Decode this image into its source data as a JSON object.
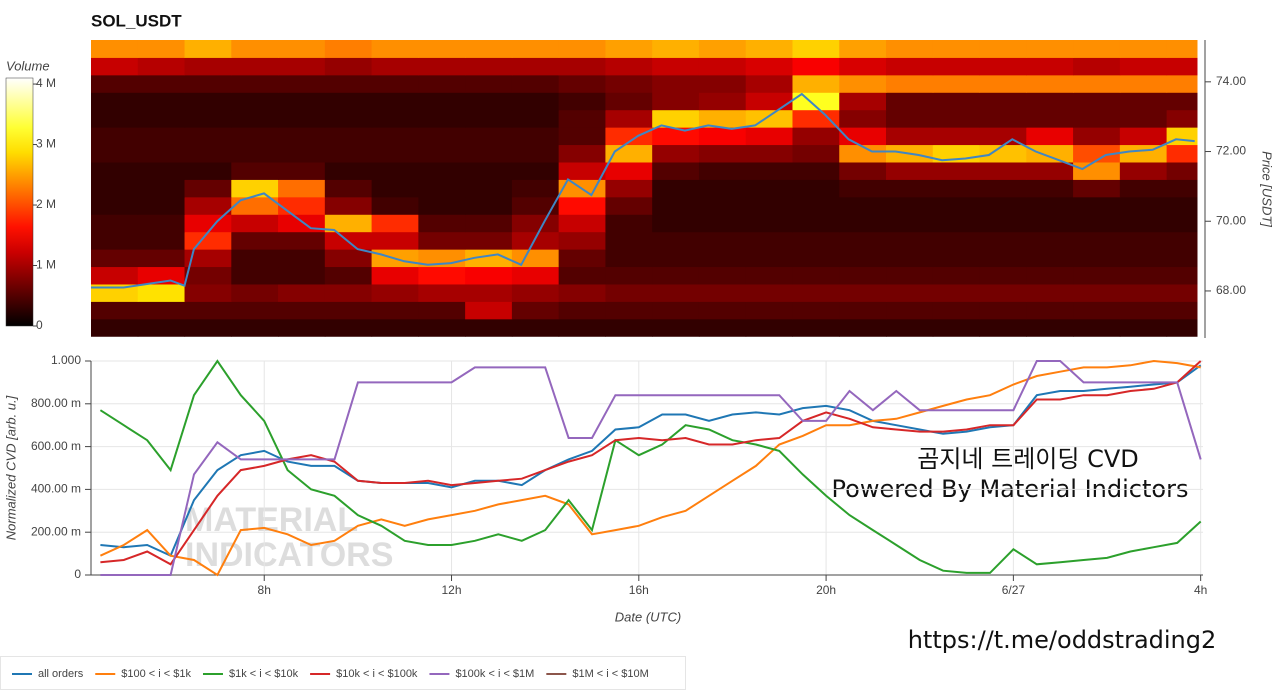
{
  "chart_data": [
    {
      "type": "heatmap",
      "title": "SOL_USDT",
      "y_label": "Price [USDT]",
      "colorbar_title": "Volume",
      "xlim": [
        4.3,
        27.95
      ],
      "ylim": [
        66.65,
        75.2
      ],
      "yticks": [
        {
          "value": 68,
          "label": "68.00"
        },
        {
          "value": 70,
          "label": "70.00"
        },
        {
          "value": 72,
          "label": "72.00"
        },
        {
          "value": 74,
          "label": "74.00"
        }
      ],
      "clim": [
        0,
        4.1
      ],
      "cticks": [
        0,
        {
          "value": 1,
          "label": "1 M"
        },
        {
          "value": 2,
          "label": "2 M"
        },
        {
          "value": 3,
          "label": "3 M"
        },
        {
          "value": 4,
          "label": "4 M"
        }
      ],
      "time_bins": [
        4.3,
        5.3,
        6.3,
        7.3,
        8.3,
        9.3,
        10.3,
        11.3,
        12.3,
        13.3,
        14.3,
        15.3,
        16.3,
        17.3,
        18.3,
        19.3,
        20.3,
        21.3,
        22.3,
        23.3,
        24.3,
        25.3,
        26.3,
        27.3,
        27.95
      ],
      "price_bins": [
        66.7,
        67.2,
        67.7,
        68.2,
        68.7,
        69.2,
        69.7,
        70.2,
        70.7,
        71.2,
        71.7,
        72.2,
        72.7,
        73.2,
        73.7,
        74.2,
        74.7,
        75.2
      ],
      "volume": [
        [
          0.3,
          0.3,
          0.3,
          0.3,
          0.3,
          0.3,
          0.3,
          0.3,
          0.3,
          0.3,
          0.3,
          0.3,
          0.3,
          0.3,
          0.3,
          0.3,
          0.3,
          0.3,
          0.3,
          0.3,
          0.3,
          0.3,
          0.3,
          0.3
        ],
        [
          0.5,
          0.5,
          0.5,
          0.5,
          0.5,
          0.5,
          0.5,
          0.5,
          1.2,
          0.6,
          0.5,
          0.5,
          0.5,
          0.5,
          0.5,
          0.5,
          0.5,
          0.5,
          0.5,
          0.5,
          0.5,
          0.5,
          0.5,
          0.5
        ],
        [
          2.8,
          2.9,
          0.8,
          0.7,
          0.8,
          0.8,
          0.9,
          1.0,
          1.0,
          0.9,
          0.8,
          0.7,
          0.7,
          0.7,
          0.7,
          0.7,
          0.7,
          0.7,
          0.7,
          0.7,
          0.7,
          0.7,
          0.7,
          0.7
        ],
        [
          1.2,
          1.4,
          0.7,
          0.4,
          0.4,
          0.5,
          1.4,
          1.6,
          1.5,
          1.4,
          0.5,
          0.5,
          0.5,
          0.5,
          0.5,
          0.5,
          0.5,
          0.5,
          0.5,
          0.5,
          0.5,
          0.5,
          0.5,
          0.5
        ],
        [
          0.6,
          0.6,
          1.0,
          0.4,
          0.4,
          0.8,
          2.5,
          2.4,
          2.6,
          2.4,
          0.6,
          0.4,
          0.4,
          0.4,
          0.4,
          0.4,
          0.4,
          0.4,
          0.4,
          0.4,
          0.4,
          0.4,
          0.4,
          0.4
        ],
        [
          0.4,
          0.4,
          1.8,
          0.6,
          0.6,
          1.2,
          1.2,
          0.7,
          0.7,
          1.0,
          0.9,
          0.4,
          0.4,
          0.4,
          0.4,
          0.4,
          0.4,
          0.4,
          0.4,
          0.4,
          0.4,
          0.4,
          0.4,
          0.4
        ],
        [
          0.4,
          0.4,
          1.4,
          1.2,
          1.4,
          2.6,
          1.8,
          0.5,
          0.5,
          0.8,
          1.2,
          0.4,
          0.3,
          0.3,
          0.3,
          0.3,
          0.3,
          0.3,
          0.3,
          0.3,
          0.3,
          0.3,
          0.3,
          0.3
        ],
        [
          0.3,
          0.3,
          1.0,
          2.2,
          1.8,
          0.8,
          0.4,
          0.3,
          0.3,
          0.5,
          1.6,
          0.6,
          0.3,
          0.3,
          0.3,
          0.3,
          0.3,
          0.3,
          0.3,
          0.3,
          0.3,
          0.3,
          0.3,
          0.3
        ],
        [
          0.3,
          0.3,
          0.6,
          2.8,
          2.2,
          0.5,
          0.3,
          0.3,
          0.3,
          0.4,
          2.4,
          0.9,
          0.3,
          0.3,
          0.3,
          0.3,
          0.4,
          0.4,
          0.4,
          0.4,
          0.4,
          0.6,
          0.4,
          0.4
        ],
        [
          0.3,
          0.3,
          0.3,
          0.5,
          0.5,
          0.3,
          0.3,
          0.3,
          0.3,
          0.3,
          1.2,
          1.4,
          0.5,
          0.4,
          0.4,
          0.4,
          0.7,
          0.9,
          0.9,
          0.9,
          0.9,
          2.4,
          0.9,
          0.7
        ],
        [
          0.4,
          0.4,
          0.4,
          0.4,
          0.4,
          0.4,
          0.4,
          0.4,
          0.4,
          0.4,
          0.8,
          2.6,
          0.9,
          0.8,
          0.8,
          0.7,
          2.4,
          2.6,
          2.8,
          2.7,
          2.6,
          2.0,
          2.6,
          1.8
        ],
        [
          0.4,
          0.4,
          0.4,
          0.4,
          0.4,
          0.4,
          0.4,
          0.4,
          0.4,
          0.4,
          0.5,
          1.8,
          1.6,
          1.5,
          1.4,
          0.9,
          1.4,
          1.0,
          1.0,
          1.0,
          1.4,
          0.9,
          1.2,
          2.8
        ],
        [
          0.3,
          0.3,
          0.3,
          0.3,
          0.3,
          0.3,
          0.3,
          0.3,
          0.3,
          0.3,
          0.5,
          1.0,
          2.8,
          2.6,
          2.7,
          1.8,
          0.8,
          0.6,
          0.6,
          0.6,
          0.6,
          0.6,
          0.6,
          0.8
        ],
        [
          0.3,
          0.3,
          0.3,
          0.3,
          0.3,
          0.3,
          0.3,
          0.3,
          0.3,
          0.3,
          0.4,
          0.6,
          0.8,
          0.9,
          1.2,
          3.2,
          1.0,
          0.6,
          0.6,
          0.6,
          0.6,
          0.6,
          0.6,
          0.6
        ],
        [
          0.5,
          0.5,
          0.5,
          0.5,
          0.5,
          0.5,
          0.5,
          0.5,
          0.5,
          0.5,
          0.6,
          0.7,
          0.8,
          0.8,
          1.0,
          2.6,
          2.4,
          2.3,
          2.3,
          2.3,
          2.3,
          2.3,
          2.3,
          2.3
        ],
        [
          1.2,
          1.1,
          1.0,
          1.0,
          1.0,
          0.9,
          1.0,
          1.0,
          1.0,
          1.0,
          1.0,
          1.1,
          1.2,
          1.2,
          1.3,
          1.5,
          1.3,
          1.2,
          1.2,
          1.2,
          1.2,
          1.1,
          1.2,
          1.2
        ],
        [
          2.4,
          2.4,
          2.6,
          2.4,
          2.4,
          2.3,
          2.4,
          2.4,
          2.4,
          2.4,
          2.4,
          2.5,
          2.6,
          2.5,
          2.6,
          2.8,
          2.5,
          2.4,
          2.4,
          2.4,
          2.4,
          2.4,
          2.4,
          2.4
        ]
      ],
      "price_line": {
        "color": "#3f86c4",
        "x": [
          4.3,
          5,
          5.5,
          6,
          6.3,
          6.5,
          7,
          7.5,
          8,
          8.5,
          9,
          9.5,
          10,
          10.5,
          11,
          11.5,
          12,
          12.5,
          13,
          13.5,
          14,
          14.5,
          15,
          15.5,
          16,
          16.5,
          17,
          17.5,
          18,
          18.5,
          19,
          19.5,
          20,
          20.5,
          21,
          21.5,
          22,
          22.5,
          23,
          23.5,
          24,
          24.5,
          25,
          25.5,
          26,
          26.5,
          27,
          27.5,
          27.9
        ],
        "values": [
          68.1,
          68.1,
          68.2,
          68.3,
          68.15,
          69.2,
          70.0,
          70.6,
          70.8,
          70.3,
          69.8,
          69.75,
          69.2,
          69.05,
          68.85,
          68.75,
          68.8,
          68.95,
          69.05,
          68.75,
          70.0,
          71.2,
          70.75,
          72.0,
          72.45,
          72.75,
          72.6,
          72.75,
          72.65,
          72.75,
          73.2,
          73.65,
          73.05,
          72.35,
          72.0,
          72.0,
          71.9,
          71.75,
          71.8,
          71.9,
          72.35,
          72.0,
          71.75,
          71.5,
          71.9,
          72.0,
          72.05,
          72.35,
          72.3
        ]
      }
    },
    {
      "type": "line",
      "x_label": "Date (UTC)",
      "y_label": "Normalized CVD [arb. u.]",
      "xlim": [
        4.3,
        28.05
      ],
      "ylim": [
        0,
        1
      ],
      "xticks": [
        {
          "value": 8,
          "label": "8h"
        },
        {
          "value": 12,
          "label": "12h"
        },
        {
          "value": 16,
          "label": "16h"
        },
        {
          "value": 20,
          "label": "20h"
        },
        {
          "value": 24,
          "label": "6/27"
        },
        {
          "value": 28,
          "label": "4h"
        }
      ],
      "yticks": [
        0,
        {
          "value": 0.2,
          "label": "200.00 m"
        },
        {
          "value": 0.4,
          "label": "400.00 m"
        },
        {
          "value": 0.6,
          "label": "600.00 m"
        },
        {
          "value": 0.8,
          "label": "800.00 m"
        },
        {
          "value": 1,
          "label": "1.000"
        }
      ],
      "grid": true,
      "x": [
        4.5,
        5,
        5.5,
        6,
        6.5,
        7,
        7.5,
        8,
        8.5,
        9,
        9.5,
        10,
        10.5,
        11,
        11.5,
        12,
        12.5,
        13,
        13.5,
        14,
        14.5,
        15,
        15.5,
        16,
        16.5,
        17,
        17.5,
        18,
        18.5,
        19,
        19.5,
        20,
        20.5,
        21,
        21.5,
        22,
        22.5,
        23,
        23.5,
        24,
        24.5,
        25,
        25.5,
        26,
        26.5,
        27,
        27.5,
        28
      ],
      "series": [
        {
          "name": "all orders",
          "color": "#1f77b4",
          "values": [
            0.14,
            0.13,
            0.14,
            0.09,
            0.35,
            0.49,
            0.56,
            0.58,
            0.53,
            0.51,
            0.51,
            0.44,
            0.43,
            0.43,
            0.43,
            0.41,
            0.44,
            0.44,
            0.42,
            0.49,
            0.54,
            0.58,
            0.68,
            0.69,
            0.75,
            0.75,
            0.72,
            0.75,
            0.76,
            0.75,
            0.78,
            0.79,
            0.77,
            0.72,
            0.7,
            0.68,
            0.66,
            0.67,
            0.69,
            0.7,
            0.84,
            0.86,
            0.86,
            0.87,
            0.88,
            0.89,
            0.9,
            0.98
          ]
        },
        {
          "name": "$100 < i < $1k",
          "color": "#ff7f0e",
          "values": [
            0.09,
            0.14,
            0.21,
            0.09,
            0.07,
            0.0,
            0.21,
            0.22,
            0.19,
            0.14,
            0.16,
            0.23,
            0.26,
            0.23,
            0.26,
            0.28,
            0.3,
            0.33,
            0.35,
            0.37,
            0.33,
            0.19,
            0.21,
            0.23,
            0.27,
            0.3,
            0.37,
            0.44,
            0.51,
            0.61,
            0.65,
            0.7,
            0.7,
            0.72,
            0.73,
            0.76,
            0.79,
            0.82,
            0.84,
            0.89,
            0.93,
            0.95,
            0.97,
            0.97,
            0.98,
            1.0,
            0.99,
            0.97
          ]
        },
        {
          "name": "$1k < i < $10k",
          "color": "#2ca02c",
          "values": [
            0.77,
            0.7,
            0.63,
            0.49,
            0.84,
            1.0,
            0.84,
            0.72,
            0.49,
            0.4,
            0.37,
            0.28,
            0.23,
            0.16,
            0.14,
            0.14,
            0.16,
            0.19,
            0.16,
            0.21,
            0.35,
            0.21,
            0.63,
            0.56,
            0.61,
            0.7,
            0.68,
            0.63,
            0.61,
            0.58,
            0.47,
            0.37,
            0.28,
            0.21,
            0.14,
            0.07,
            0.02,
            0.01,
            0.01,
            0.12,
            0.05,
            0.06,
            0.07,
            0.08,
            0.11,
            0.13,
            0.15,
            0.25
          ]
        },
        {
          "name": "$10k < i < $100k",
          "color": "#d62728",
          "values": [
            0.06,
            0.07,
            0.11,
            0.05,
            0.21,
            0.37,
            0.49,
            0.51,
            0.54,
            0.56,
            0.53,
            0.44,
            0.43,
            0.43,
            0.44,
            0.42,
            0.43,
            0.44,
            0.45,
            0.49,
            0.53,
            0.56,
            0.63,
            0.64,
            0.63,
            0.64,
            0.61,
            0.61,
            0.63,
            0.64,
            0.72,
            0.76,
            0.73,
            0.69,
            0.68,
            0.67,
            0.67,
            0.68,
            0.7,
            0.7,
            0.82,
            0.82,
            0.84,
            0.84,
            0.86,
            0.87,
            0.9,
            1.0
          ]
        },
        {
          "name": "$100k < i < $1M",
          "color": "#9467bd",
          "values": [
            0,
            0,
            0,
            0,
            0.47,
            0.62,
            0.54,
            0.54,
            0.54,
            0.54,
            0.54,
            0.9,
            0.9,
            0.9,
            0.9,
            0.9,
            0.97,
            0.97,
            0.97,
            0.97,
            0.64,
            0.64,
            0.84,
            0.84,
            0.84,
            0.84,
            0.84,
            0.84,
            0.84,
            0.84,
            0.72,
            0.72,
            0.86,
            0.77,
            0.86,
            0.77,
            0.77,
            0.77,
            0.77,
            0.77,
            1.0,
            1.0,
            0.9,
            0.9,
            0.9,
            0.9,
            0.9,
            0.54
          ]
        },
        {
          "name": "$1M < i < $10M",
          "color": "#8c564b",
          "values": [
            null,
            null,
            null,
            null,
            null,
            null,
            null,
            null,
            null,
            null,
            null,
            null,
            null,
            null,
            null,
            null,
            null,
            null,
            null,
            null,
            null,
            null,
            null,
            null,
            null,
            null,
            null,
            null,
            null,
            null,
            null,
            null,
            null,
            null,
            null,
            null,
            null,
            null,
            null,
            null,
            null,
            null,
            null,
            null,
            null,
            null,
            null,
            null
          ]
        }
      ],
      "watermark": [
        "MATERIAL",
        "INDICATORS"
      ],
      "annotations": [
        "곰지네 트레이딩 CVD",
        "Powered By Material Indictors"
      ]
    }
  ],
  "link": "https://t.me/oddstrading2"
}
